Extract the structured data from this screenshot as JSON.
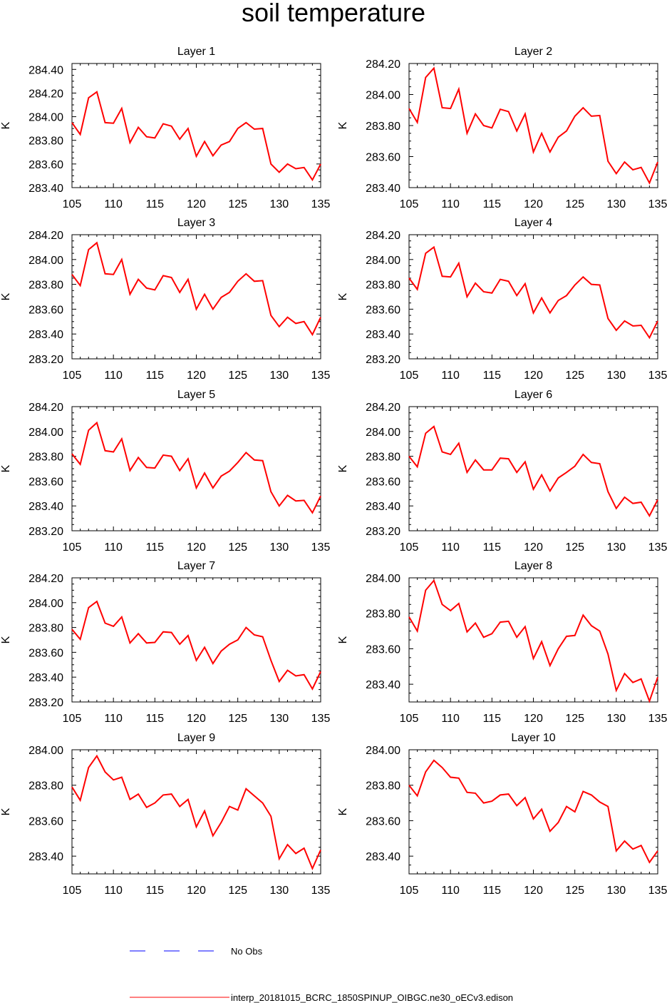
{
  "title": "soil temperature",
  "colors": {
    "model_line": "#ff0000",
    "obs_line": "#0000ff",
    "frame": "#000000"
  },
  "legend": {
    "obs_label": "No Obs",
    "model_label": "interp_20181015_BCRC_1850SPINUP_OIBGC.ne30_oECv3.edison"
  },
  "chart_data": [
    {
      "type": "line",
      "title": "Layer 1",
      "ylabel": "K",
      "xlim": [
        105,
        135
      ],
      "ylim": [
        283.4,
        284.45
      ],
      "xticks": [
        "105",
        "110",
        "115",
        "120",
        "125",
        "130",
        "135"
      ],
      "yticks": [
        "283.40",
        "283.60",
        "283.80",
        "284.00",
        "284.20",
        "284.40"
      ],
      "series": [
        {
          "x": [
            105,
            106,
            107,
            108,
            109,
            110,
            111,
            112,
            113,
            114,
            115,
            116,
            117,
            118,
            119,
            120,
            121,
            122,
            123,
            124,
            125,
            126,
            127,
            128,
            129,
            130,
            131,
            132,
            133,
            134,
            135
          ],
          "values": [
            283.95,
            283.85,
            284.16,
            284.21,
            283.95,
            283.945,
            284.07,
            283.78,
            283.91,
            283.83,
            283.82,
            283.94,
            283.92,
            283.81,
            283.9,
            283.665,
            283.79,
            283.67,
            283.76,
            283.79,
            283.9,
            283.95,
            283.895,
            283.9,
            283.6,
            283.53,
            283.6,
            283.56,
            283.57,
            283.465,
            283.6
          ]
        }
      ]
    },
    {
      "type": "line",
      "title": "Layer 2",
      "ylabel": "K",
      "xlim": [
        105,
        135
      ],
      "ylim": [
        283.4,
        284.2
      ],
      "xticks": [
        "105",
        "110",
        "115",
        "120",
        "125",
        "130",
        "135"
      ],
      "yticks": [
        "283.40",
        "283.60",
        "283.80",
        "284.00",
        "284.20"
      ],
      "series": [
        {
          "x": [
            105,
            106,
            107,
            108,
            109,
            110,
            111,
            112,
            113,
            114,
            115,
            116,
            117,
            118,
            119,
            120,
            121,
            122,
            123,
            124,
            125,
            126,
            127,
            128,
            129,
            130,
            131,
            132,
            133,
            134,
            135
          ],
          "values": [
            283.91,
            283.82,
            284.11,
            284.17,
            283.915,
            283.91,
            284.035,
            283.75,
            283.875,
            283.8,
            283.785,
            283.905,
            283.89,
            283.765,
            283.875,
            283.63,
            283.75,
            283.63,
            283.725,
            283.765,
            283.86,
            283.915,
            283.86,
            283.865,
            283.57,
            283.49,
            283.565,
            283.515,
            283.53,
            283.43,
            283.565
          ]
        }
      ]
    },
    {
      "type": "line",
      "title": "Layer 3",
      "ylabel": "K",
      "xlim": [
        105,
        135
      ],
      "ylim": [
        283.2,
        284.2
      ],
      "xticks": [
        "105",
        "110",
        "115",
        "120",
        "125",
        "130",
        "135"
      ],
      "yticks": [
        "283.20",
        "283.40",
        "283.60",
        "283.80",
        "284.00",
        "284.20"
      ],
      "series": [
        {
          "x": [
            105,
            106,
            107,
            108,
            109,
            110,
            111,
            112,
            113,
            114,
            115,
            116,
            117,
            118,
            119,
            120,
            121,
            122,
            123,
            124,
            125,
            126,
            127,
            128,
            129,
            130,
            131,
            132,
            133,
            134,
            135
          ],
          "values": [
            283.88,
            283.79,
            284.08,
            284.135,
            283.885,
            283.88,
            284.0,
            283.72,
            283.84,
            283.77,
            283.755,
            283.87,
            283.855,
            283.735,
            283.84,
            283.6,
            283.72,
            283.6,
            283.695,
            283.735,
            283.825,
            283.885,
            283.825,
            283.83,
            283.55,
            283.46,
            283.535,
            283.485,
            283.5,
            283.395,
            283.535
          ]
        }
      ]
    },
    {
      "type": "line",
      "title": "Layer 4",
      "ylabel": "K",
      "xlim": [
        105,
        135
      ],
      "ylim": [
        283.2,
        284.2
      ],
      "xticks": [
        "105",
        "110",
        "115",
        "120",
        "125",
        "130",
        "135"
      ],
      "yticks": [
        "283.20",
        "283.40",
        "283.60",
        "283.80",
        "284.00",
        "284.20"
      ],
      "series": [
        {
          "x": [
            105,
            106,
            107,
            108,
            109,
            110,
            111,
            112,
            113,
            114,
            115,
            116,
            117,
            118,
            119,
            120,
            121,
            122,
            123,
            124,
            125,
            126,
            127,
            128,
            129,
            130,
            131,
            132,
            133,
            134,
            135
          ],
          "values": [
            283.85,
            283.76,
            284.05,
            284.1,
            283.865,
            283.86,
            283.97,
            283.7,
            283.81,
            283.74,
            283.73,
            283.84,
            283.825,
            283.71,
            283.805,
            283.57,
            283.69,
            283.57,
            283.67,
            283.71,
            283.795,
            283.86,
            283.8,
            283.795,
            283.525,
            283.43,
            283.505,
            283.465,
            283.47,
            283.37,
            283.505
          ]
        }
      ]
    },
    {
      "type": "line",
      "title": "Layer 5",
      "ylabel": "K",
      "xlim": [
        105,
        135
      ],
      "ylim": [
        283.2,
        284.2
      ],
      "xticks": [
        "105",
        "110",
        "115",
        "120",
        "125",
        "130",
        "135"
      ],
      "yticks": [
        "283.20",
        "283.40",
        "283.60",
        "283.80",
        "284.00",
        "284.20"
      ],
      "series": [
        {
          "x": [
            105,
            106,
            107,
            108,
            109,
            110,
            111,
            112,
            113,
            114,
            115,
            116,
            117,
            118,
            119,
            120,
            121,
            122,
            123,
            124,
            125,
            126,
            127,
            128,
            129,
            130,
            131,
            132,
            133,
            134,
            135
          ],
          "values": [
            283.82,
            283.735,
            284.01,
            284.07,
            283.845,
            283.835,
            283.94,
            283.685,
            283.79,
            283.71,
            283.705,
            283.81,
            283.8,
            283.685,
            283.78,
            283.545,
            283.665,
            283.545,
            283.64,
            283.68,
            283.75,
            283.83,
            283.77,
            283.765,
            283.515,
            283.4,
            283.485,
            283.44,
            283.445,
            283.345,
            283.48
          ]
        }
      ]
    },
    {
      "type": "line",
      "title": "Layer 6",
      "ylabel": "K",
      "xlim": [
        105,
        135
      ],
      "ylim": [
        283.2,
        284.2
      ],
      "xticks": [
        "105",
        "110",
        "115",
        "120",
        "125",
        "130",
        "135"
      ],
      "yticks": [
        "283.20",
        "283.40",
        "283.60",
        "283.80",
        "284.00",
        "284.20"
      ],
      "series": [
        {
          "x": [
            105,
            106,
            107,
            108,
            109,
            110,
            111,
            112,
            113,
            114,
            115,
            116,
            117,
            118,
            119,
            120,
            121,
            122,
            123,
            124,
            125,
            126,
            127,
            128,
            129,
            130,
            131,
            132,
            133,
            134,
            135
          ],
          "values": [
            283.8,
            283.715,
            283.985,
            284.04,
            283.835,
            283.815,
            283.905,
            283.67,
            283.77,
            283.69,
            283.69,
            283.785,
            283.78,
            283.67,
            283.755,
            283.535,
            283.65,
            283.52,
            283.625,
            283.67,
            283.72,
            283.815,
            283.75,
            283.74,
            283.515,
            283.38,
            283.47,
            283.42,
            283.43,
            283.32,
            283.45
          ]
        }
      ]
    },
    {
      "type": "line",
      "title": "Layer 7",
      "ylabel": "K",
      "xlim": [
        105,
        135
      ],
      "ylim": [
        283.2,
        284.2
      ],
      "xticks": [
        "105",
        "110",
        "115",
        "120",
        "125",
        "130",
        "135"
      ],
      "yticks": [
        "283.20",
        "283.40",
        "283.60",
        "283.80",
        "284.00",
        "284.20"
      ],
      "series": [
        {
          "x": [
            105,
            106,
            107,
            108,
            109,
            110,
            111,
            112,
            113,
            114,
            115,
            116,
            117,
            118,
            119,
            120,
            121,
            122,
            123,
            124,
            125,
            126,
            127,
            128,
            129,
            130,
            131,
            132,
            133,
            134,
            135
          ],
          "values": [
            283.785,
            283.705,
            283.96,
            284.01,
            283.835,
            283.81,
            283.885,
            283.675,
            283.75,
            283.675,
            283.68,
            283.765,
            283.76,
            283.665,
            283.735,
            283.535,
            283.64,
            283.51,
            283.61,
            283.665,
            283.7,
            283.8,
            283.74,
            283.725,
            283.535,
            283.365,
            283.455,
            283.41,
            283.42,
            283.305,
            283.445
          ]
        }
      ]
    },
    {
      "type": "line",
      "title": "Layer 8",
      "ylabel": "K",
      "xlim": [
        105,
        135
      ],
      "ylim": [
        283.3,
        284.0
      ],
      "xticks": [
        "105",
        "110",
        "115",
        "120",
        "125",
        "130",
        "135"
      ],
      "yticks": [
        "283.40",
        "283.60",
        "283.80",
        "284.00"
      ],
      "series": [
        {
          "x": [
            105,
            106,
            107,
            108,
            109,
            110,
            111,
            112,
            113,
            114,
            115,
            116,
            117,
            118,
            119,
            120,
            121,
            122,
            123,
            124,
            125,
            126,
            127,
            128,
            129,
            130,
            131,
            132,
            133,
            134,
            135
          ],
          "values": [
            283.78,
            283.7,
            283.93,
            283.985,
            283.85,
            283.815,
            283.855,
            283.695,
            283.745,
            283.665,
            283.685,
            283.75,
            283.755,
            283.665,
            283.725,
            283.545,
            283.64,
            283.505,
            283.6,
            283.67,
            283.675,
            283.79,
            283.73,
            283.7,
            283.57,
            283.365,
            283.46,
            283.41,
            283.43,
            283.305,
            283.44
          ]
        }
      ]
    },
    {
      "type": "line",
      "title": "Layer 9",
      "ylabel": "K",
      "xlim": [
        105,
        135
      ],
      "ylim": [
        283.3,
        284.0
      ],
      "xticks": [
        "105",
        "110",
        "115",
        "120",
        "125",
        "130",
        "135"
      ],
      "yticks": [
        "283.40",
        "283.60",
        "283.80",
        "284.00"
      ],
      "series": [
        {
          "x": [
            105,
            106,
            107,
            108,
            109,
            110,
            111,
            112,
            113,
            114,
            115,
            116,
            117,
            118,
            119,
            120,
            121,
            122,
            123,
            124,
            125,
            126,
            127,
            128,
            129,
            130,
            131,
            132,
            133,
            134,
            135
          ],
          "values": [
            283.79,
            283.715,
            283.9,
            283.965,
            283.875,
            283.83,
            283.845,
            283.72,
            283.75,
            283.675,
            283.7,
            283.745,
            283.75,
            283.68,
            283.72,
            283.565,
            283.655,
            283.515,
            283.59,
            283.68,
            283.66,
            283.78,
            283.74,
            283.7,
            283.625,
            283.385,
            283.465,
            283.415,
            283.445,
            283.33,
            283.435
          ]
        }
      ]
    },
    {
      "type": "line",
      "title": "Layer 10",
      "ylabel": "K",
      "xlim": [
        105,
        135
      ],
      "ylim": [
        283.3,
        284.0
      ],
      "xticks": [
        "105",
        "110",
        "115",
        "120",
        "125",
        "130",
        "135"
      ],
      "yticks": [
        "283.40",
        "283.60",
        "283.80",
        "284.00"
      ],
      "series": [
        {
          "x": [
            105,
            106,
            107,
            108,
            109,
            110,
            111,
            112,
            113,
            114,
            115,
            116,
            117,
            118,
            119,
            120,
            121,
            122,
            123,
            124,
            125,
            126,
            127,
            128,
            129,
            130,
            131,
            132,
            133,
            134,
            135
          ],
          "values": [
            283.8,
            283.74,
            283.875,
            283.94,
            283.9,
            283.845,
            283.84,
            283.76,
            283.755,
            283.7,
            283.71,
            283.745,
            283.75,
            283.685,
            283.73,
            283.61,
            283.665,
            283.54,
            283.59,
            283.68,
            283.65,
            283.765,
            283.745,
            283.705,
            283.68,
            283.43,
            283.485,
            283.44,
            283.46,
            283.365,
            283.43
          ]
        }
      ]
    }
  ]
}
